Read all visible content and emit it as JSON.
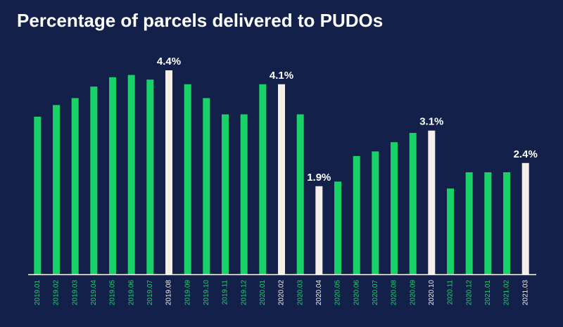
{
  "title": "Percentage of parcels delivered to PUDOs",
  "colors": {
    "background": "#13214a",
    "bar": "#18d167",
    "highlight_bar": "#f5ede8",
    "axis": "#ffffff",
    "label": "#ffffff"
  },
  "chart_data": {
    "type": "bar",
    "title": "Percentage of parcels delivered to PUDOs",
    "xlabel": "",
    "ylabel": "",
    "ylim": [
      0,
      4.8
    ],
    "grid": false,
    "legend": "none",
    "categories": [
      "2019.01",
      "2019.02",
      "2019.03",
      "2019.04",
      "2019.05",
      "2019.06",
      "2019.07",
      "2019.08",
      "2019.09",
      "2019.10",
      "2019.11",
      "2019.12",
      "2020.01",
      "2020.02",
      "2020.03",
      "2020.04",
      "2020.05",
      "2020.06",
      "2020.07",
      "2020.08",
      "2020.09",
      "2020.10",
      "2020.11",
      "2020.12",
      "2021.01",
      "2021.02",
      "2021.03"
    ],
    "values": [
      3.4,
      3.65,
      3.8,
      4.05,
      4.25,
      4.3,
      4.2,
      4.4,
      4.1,
      3.8,
      3.45,
      3.45,
      4.1,
      4.1,
      3.45,
      1.9,
      2.0,
      2.55,
      2.65,
      2.85,
      3.05,
      3.1,
      1.85,
      2.2,
      2.2,
      2.2,
      2.4
    ],
    "highlighted": [
      "2019.08",
      "2020.02",
      "2020.04",
      "2020.10",
      "2021.03"
    ],
    "data_labels": [
      {
        "category": "2019.08",
        "text": "4.4%"
      },
      {
        "category": "2020.02",
        "text": "4.1%"
      },
      {
        "category": "2020.04",
        "text": "1.9%"
      },
      {
        "category": "2020.10",
        "text": "3.1%"
      },
      {
        "category": "2021.03",
        "text": "2.4%"
      }
    ]
  }
}
